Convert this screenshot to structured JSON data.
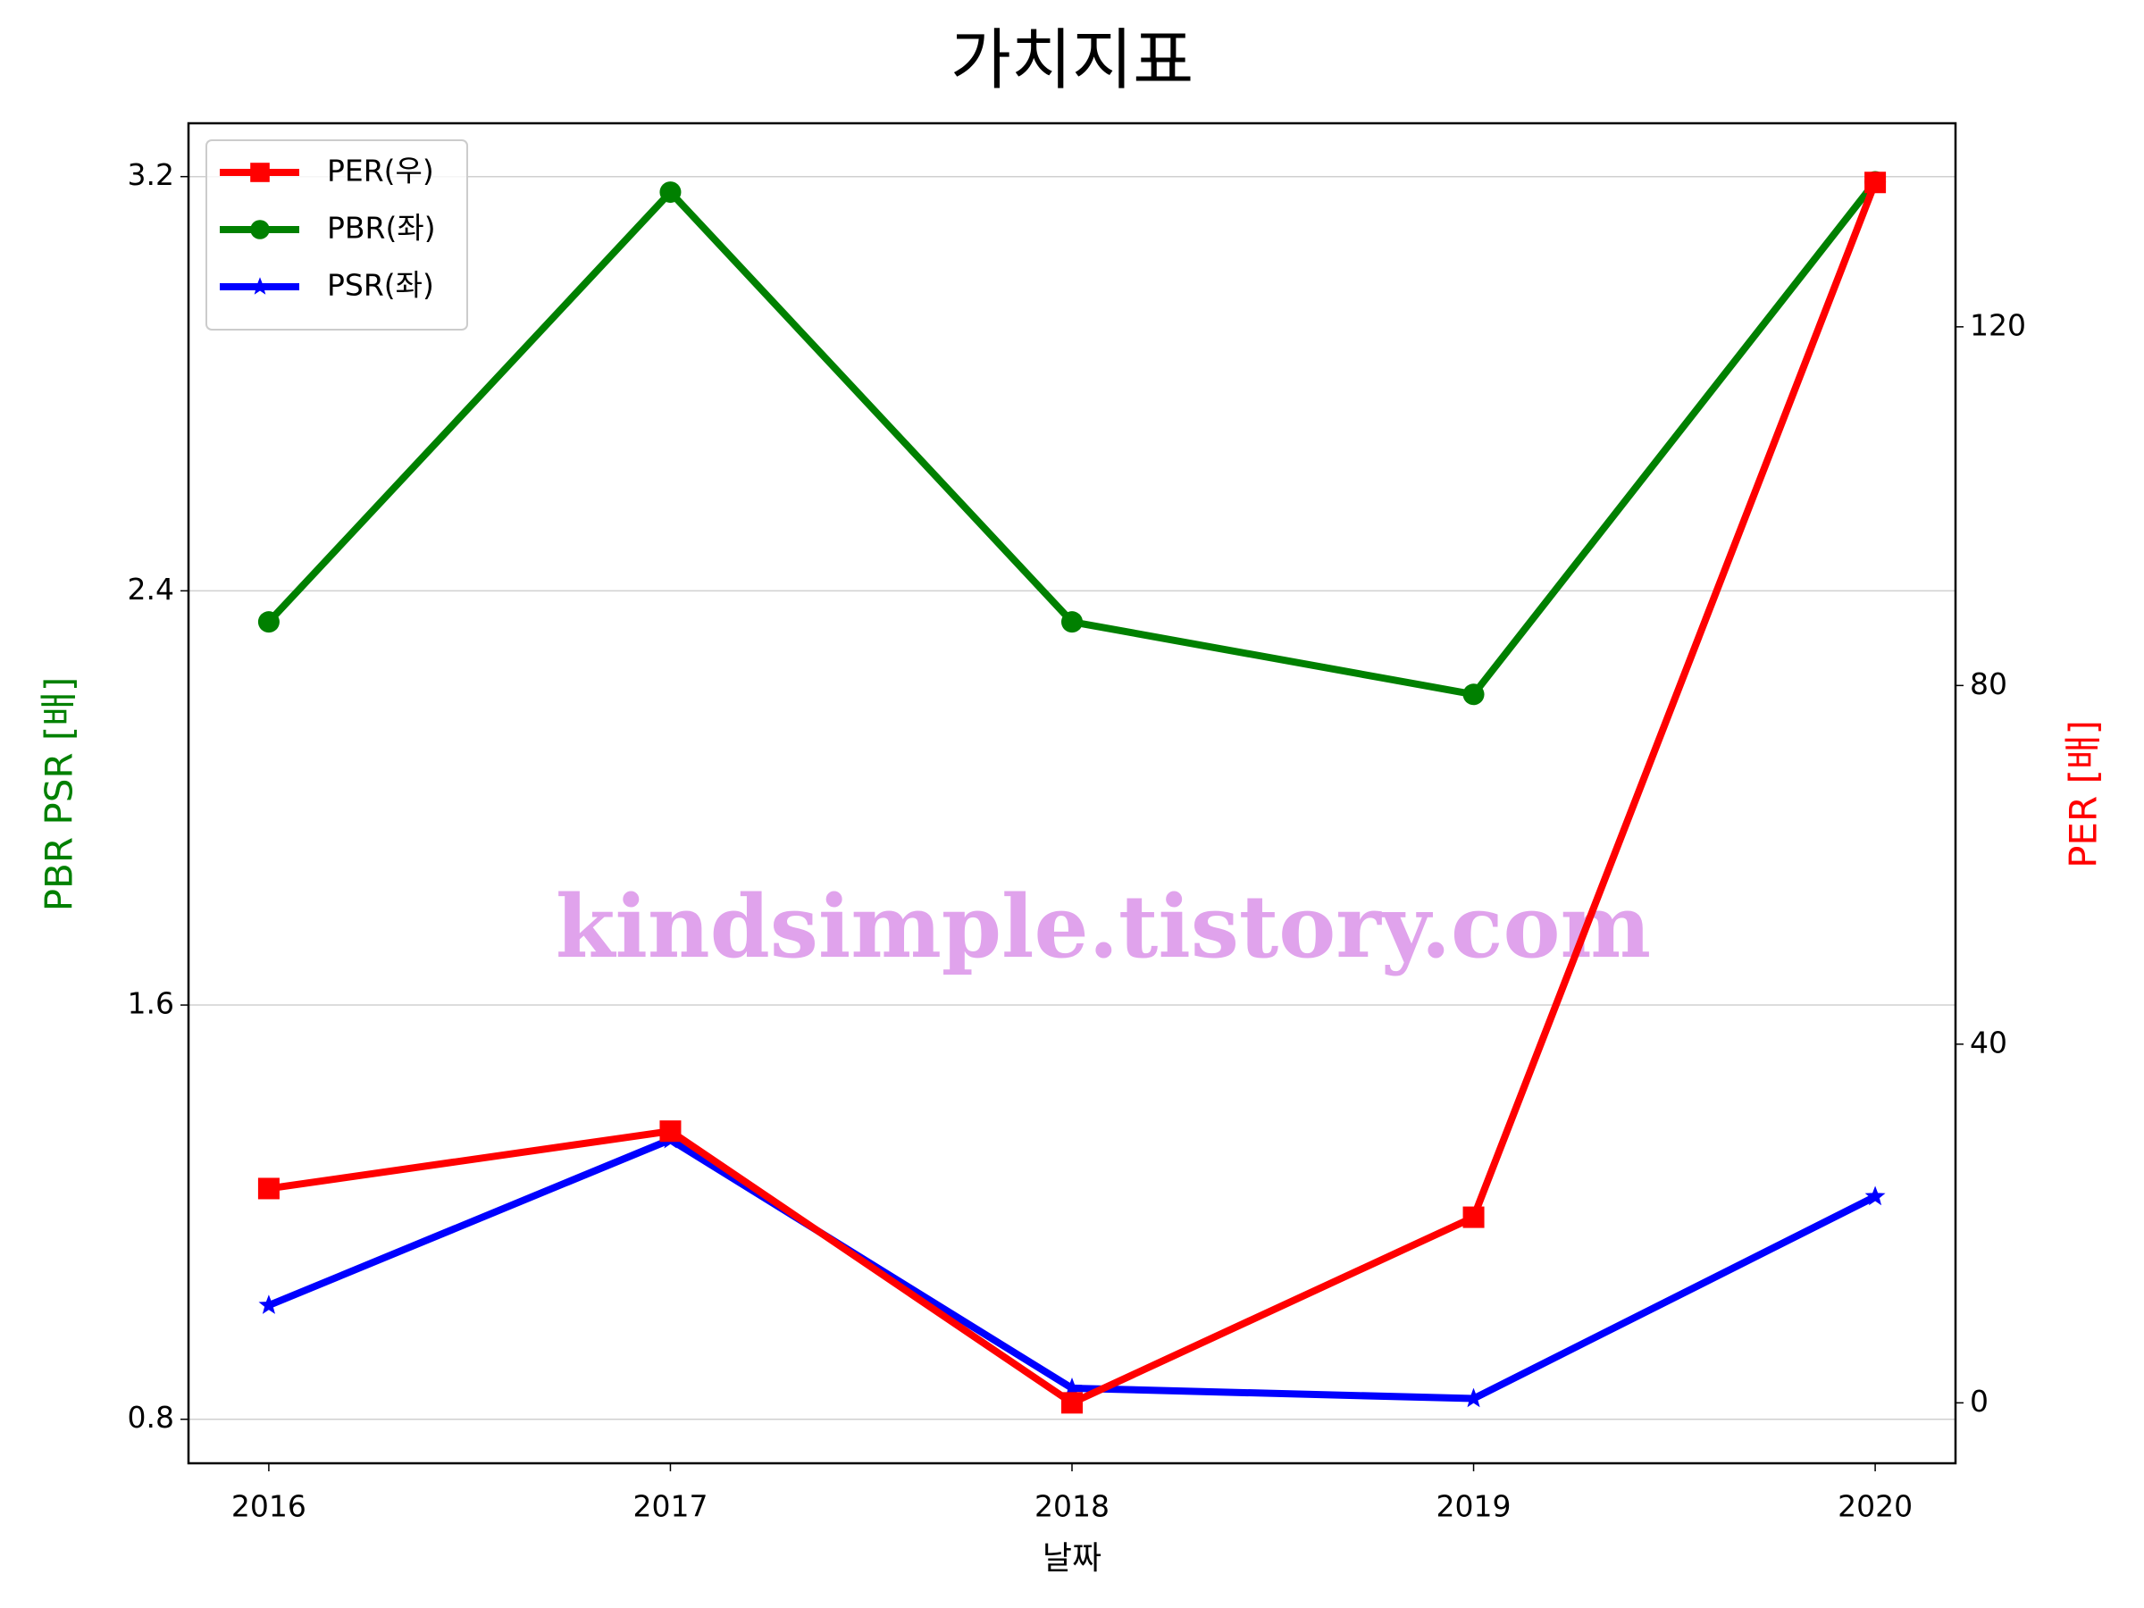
{
  "chart_data": {
    "type": "line",
    "title": "가치지표",
    "x": [
      2016,
      2017,
      2018,
      2019,
      2020
    ],
    "xlim": [
      2015.8,
      2020.2
    ],
    "xticks": [
      2016,
      2017,
      2018,
      2019,
      2020
    ],
    "xlabel": "날짜",
    "ylabel": "PBR PSR [배]",
    "y2label": "PER [배]",
    "ylim": [
      0.715,
      3.303
    ],
    "yticks": [
      0.8,
      1.6,
      2.4,
      3.2
    ],
    "y2lim": [
      -6.74,
      142.7
    ],
    "y2ticks": [
      0,
      40,
      80,
      120
    ],
    "grid": true,
    "legend": "upper left",
    "annotation": "kindsimple.tistory.com",
    "series": [
      {
        "name": "PER(우)",
        "color": "#ff0000",
        "marker": "square",
        "axis": "y2",
        "values": [
          23.9,
          30.3,
          0,
          20.7,
          136.1
        ]
      },
      {
        "name": "PBR(좌)",
        "color": "#008000",
        "marker": "circle",
        "values": [
          2.34,
          3.17,
          2.34,
          2.2,
          3.19
        ]
      },
      {
        "name": "PSR(좌)",
        "color": "#0000ff",
        "marker": "star",
        "values": [
          1.02,
          1.34,
          0.86,
          0.84,
          1.23
        ]
      }
    ]
  }
}
